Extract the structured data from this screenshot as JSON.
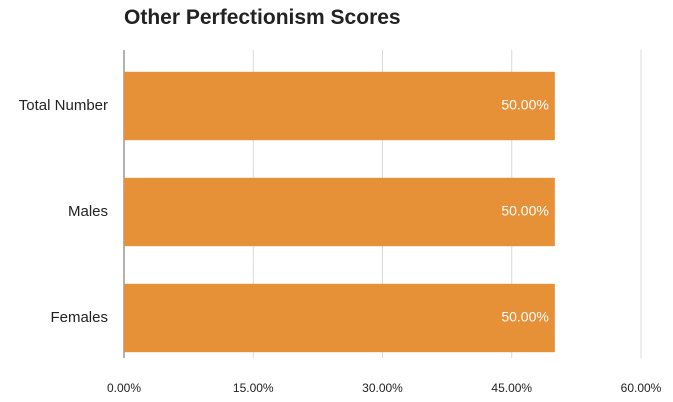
{
  "chart_data": {
    "type": "bar",
    "orientation": "horizontal",
    "title": "Other Perfectionism Scores",
    "categories": [
      "Total Number",
      "Males",
      "Females"
    ],
    "values": [
      50,
      50,
      50
    ],
    "value_labels": [
      "50.00%",
      "50.00%",
      "50.00%"
    ],
    "color": "#e69138",
    "xlim": [
      0,
      60
    ],
    "xticks": [
      {
        "value": 0,
        "label": "0.00%"
      },
      {
        "value": 15,
        "label": "15.00%"
      },
      {
        "value": 30,
        "label": "30.00%"
      },
      {
        "value": 45,
        "label": "45.00%"
      },
      {
        "value": 60,
        "label": "60.00%"
      }
    ],
    "grid": true
  }
}
